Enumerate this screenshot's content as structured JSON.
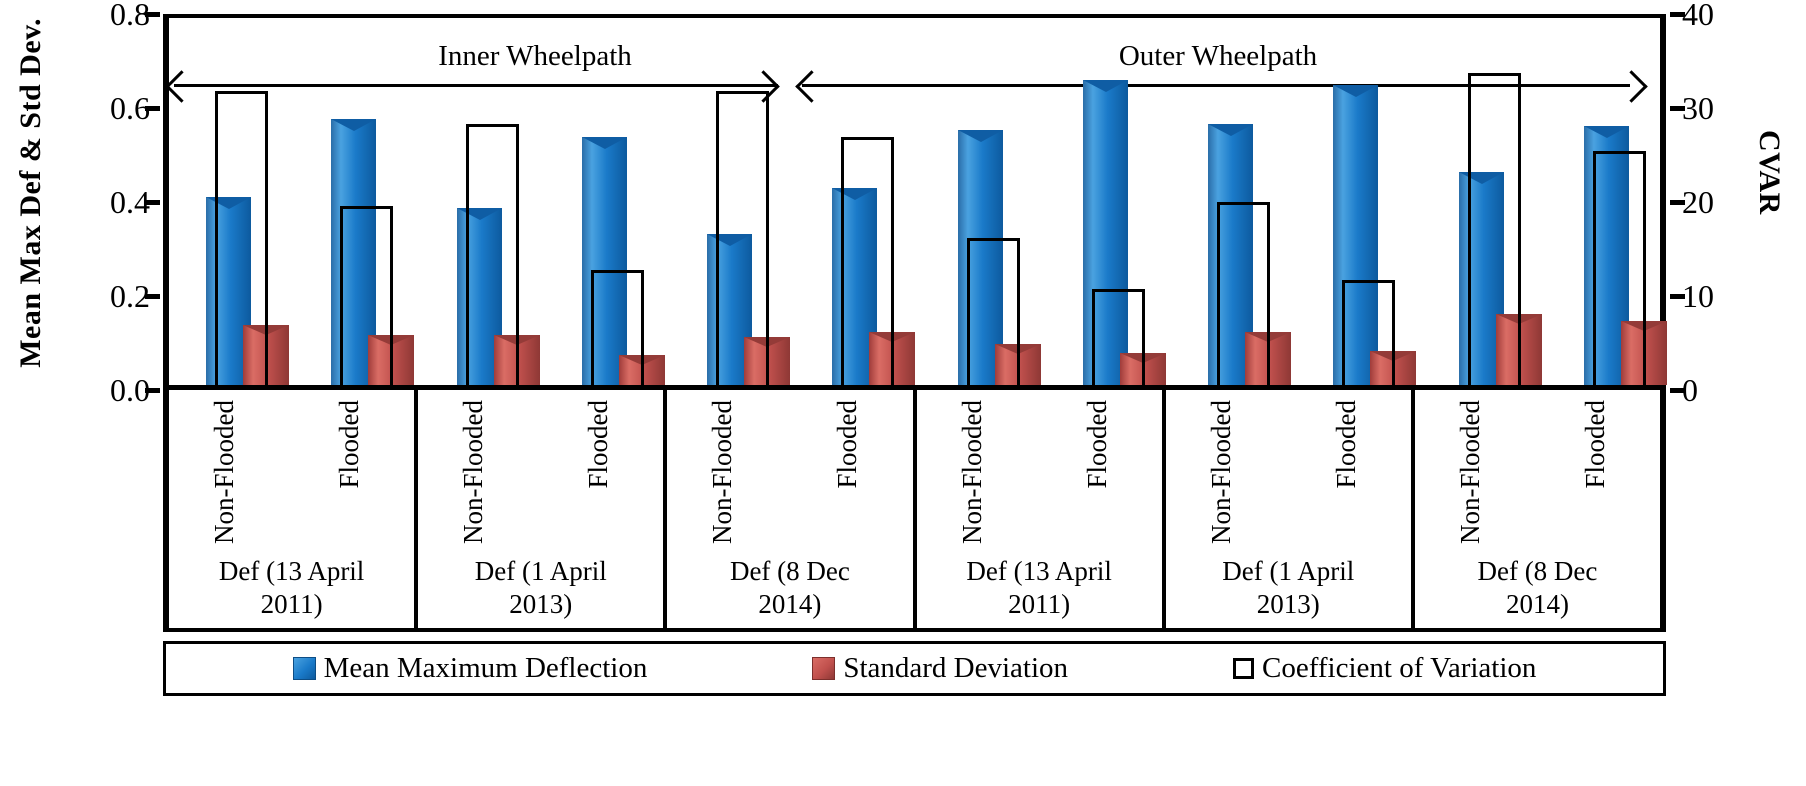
{
  "annotations": {
    "inner": "Inner Wheelpath",
    "outer": "Outer Wheelpath"
  },
  "legend": {
    "items": [
      {
        "key": "mean_max_deflection",
        "label": "Mean Maximum Deflection"
      },
      {
        "key": "std_deviation",
        "label": "Standard Deviation"
      },
      {
        "key": "cvar",
        "label": "Coefficient of Variation"
      }
    ]
  },
  "chart_data": {
    "type": "bar",
    "left_axis": {
      "label": "Mean Max Def & Std Dev.",
      "min": 0,
      "max": 0.8,
      "tick_labels": [
        "0.8",
        "0.6",
        "0.4",
        "0.2",
        "0.0"
      ]
    },
    "right_axis": {
      "label": "CVAR",
      "min": 0,
      "max": 40,
      "tick_labels": [
        "40",
        "30",
        "20",
        "10",
        "0"
      ]
    },
    "series_names": [
      "Mean Maximum Deflection",
      "Standard Deviation",
      "Coefficient of Variation"
    ],
    "sections": [
      "Inner Wheelpath",
      "Outer Wheelpath"
    ],
    "colors": {
      "mean_max_deflection": "#1a7ac9",
      "std_deviation": "#c0504d",
      "cvar_fill": "#ffffff",
      "cvar_border": "#000000"
    },
    "groups": [
      {
        "section": "Inner Wheelpath",
        "label_line1": "Def (13 April",
        "label_line2": "2011)",
        "categories": [
          {
            "label": "Non-Flooded",
            "mean_max_deflection": 0.41,
            "std_deviation": 0.13,
            "cvar": 32
          },
          {
            "label": "Flooded",
            "mean_max_deflection": 0.58,
            "std_deviation": 0.11,
            "cvar": 19.5
          }
        ]
      },
      {
        "section": "Inner Wheelpath",
        "label_line1": "Def (1 April",
        "label_line2": "2013)",
        "categories": [
          {
            "label": "Non-Flooded",
            "mean_max_deflection": 0.385,
            "std_deviation": 0.11,
            "cvar": 28.5
          },
          {
            "label": "Flooded",
            "mean_max_deflection": 0.54,
            "std_deviation": 0.065,
            "cvar": 12.5
          }
        ]
      },
      {
        "section": "Inner Wheelpath",
        "label_line1": "Def (8 Dec",
        "label_line2": "2014)",
        "categories": [
          {
            "label": "Non-Flooded",
            "mean_max_deflection": 0.33,
            "std_deviation": 0.105,
            "cvar": 32
          },
          {
            "label": "Flooded",
            "mean_max_deflection": 0.43,
            "std_deviation": 0.115,
            "cvar": 27
          }
        ]
      },
      {
        "section": "Outer Wheelpath",
        "label_line1": "Def (13 April",
        "label_line2": "2011)",
        "categories": [
          {
            "label": "Non-Flooded",
            "mean_max_deflection": 0.555,
            "std_deviation": 0.09,
            "cvar": 16
          },
          {
            "label": "Flooded",
            "mean_max_deflection": 0.665,
            "std_deviation": 0.07,
            "cvar": 10.5
          }
        ]
      },
      {
        "section": "Outer Wheelpath",
        "label_line1": "Def (1 April",
        "label_line2": "2013)",
        "categories": [
          {
            "label": "Non-Flooded",
            "mean_max_deflection": 0.57,
            "std_deviation": 0.115,
            "cvar": 20
          },
          {
            "label": "Flooded",
            "mean_max_deflection": 0.655,
            "std_deviation": 0.075,
            "cvar": 11.5
          }
        ]
      },
      {
        "section": "Outer Wheelpath",
        "label_line1": "Def (8 Dec",
        "label_line2": "2014)",
        "categories": [
          {
            "label": "Non-Flooded",
            "mean_max_deflection": 0.465,
            "std_deviation": 0.155,
            "cvar": 34
          },
          {
            "label": "Flooded",
            "mean_max_deflection": 0.565,
            "std_deviation": 0.14,
            "cvar": 25.5
          }
        ]
      }
    ]
  }
}
